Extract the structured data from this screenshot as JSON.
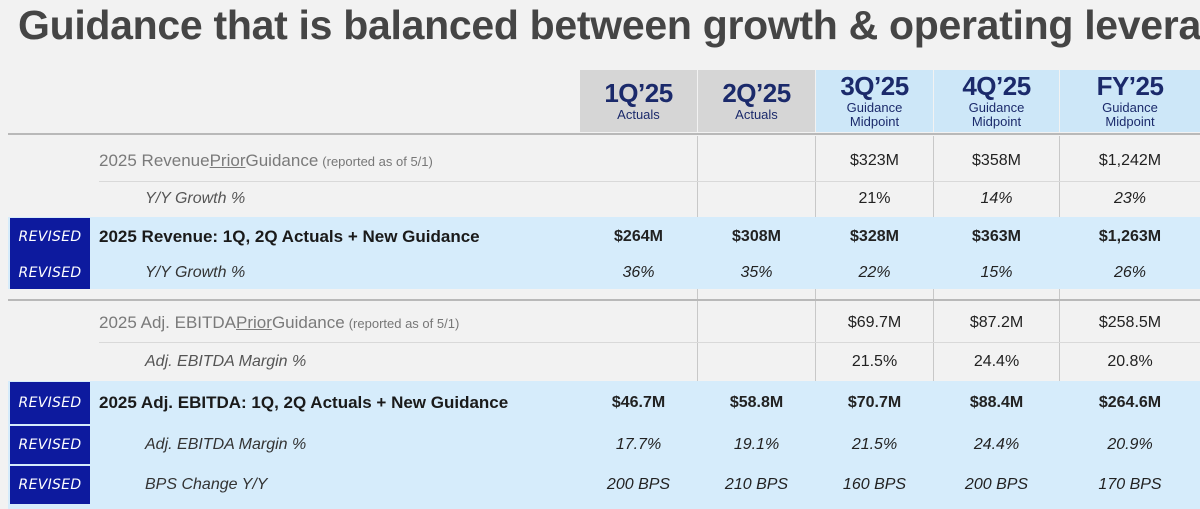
{
  "title": "Guidance that is balanced between growth & operating leverage",
  "columns": [
    {
      "period": "1Q’25",
      "sub1": "Actuals",
      "sub2": ""
    },
    {
      "period": "2Q’25",
      "sub1": "Actuals",
      "sub2": ""
    },
    {
      "period": "3Q’25",
      "sub1": "Guidance",
      "sub2": "Midpoint"
    },
    {
      "period": "4Q’25",
      "sub1": "Guidance",
      "sub2": "Midpoint"
    },
    {
      "period": "FY’25",
      "sub1": "Guidance",
      "sub2": "Midpoint"
    }
  ],
  "revenue_prior": {
    "label_a": "2025 Revenue ",
    "label_b": "Prior",
    "label_c": " Guidance",
    "note": "(reported as of 5/1)",
    "values": [
      "",
      "",
      "$323M",
      "$358M",
      "$1,242M"
    ],
    "growth_label": "Y/Y Growth %",
    "growth": [
      "",
      "",
      "21%",
      "14%",
      "23%"
    ]
  },
  "revenue_new": {
    "badge": "REVISED",
    "label": "2025 Revenue: 1Q, 2Q Actuals + New Guidance",
    "values": [
      "$264M",
      "$308M",
      "$328M",
      "$363M",
      "$1,263M"
    ],
    "growth_label": "Y/Y Growth %",
    "growth": [
      "36%",
      "35%",
      "22%",
      "15%",
      "26%"
    ]
  },
  "ebitda_prior": {
    "label_a": "2025 Adj. EBITDA ",
    "label_b": "Prior",
    "label_c": " Guidance",
    "note": "(reported as of 5/1)",
    "values": [
      "",
      "",
      "$69.7M",
      "$87.2M",
      "$258.5M"
    ],
    "margin_label": "Adj. EBITDA Margin %",
    "margin": [
      "",
      "",
      "21.5%",
      "24.4%",
      "20.8%"
    ]
  },
  "ebitda_new": {
    "badge": "REVISED",
    "label": "2025 Adj. EBITDA: 1Q, 2Q Actuals + New Guidance",
    "values": [
      "$46.7M",
      "$58.8M",
      "$70.7M",
      "$88.4M",
      "$264.6M"
    ],
    "margin_label": "Adj. EBITDA Margin %",
    "margin": [
      "17.7%",
      "19.1%",
      "21.5%",
      "24.4%",
      "20.9%"
    ],
    "bps_label": "BPS Change Y/Y",
    "bps": [
      "200 BPS",
      "210 BPS",
      "160 BPS",
      "200 BPS",
      "170 BPS"
    ]
  },
  "colors": {
    "badge": "#0d1a9e",
    "band": "#d6ecfb",
    "header_actual": "#d6d6d6",
    "header_guidance": "#cde7f8",
    "header_text": "#1b2a6b"
  }
}
